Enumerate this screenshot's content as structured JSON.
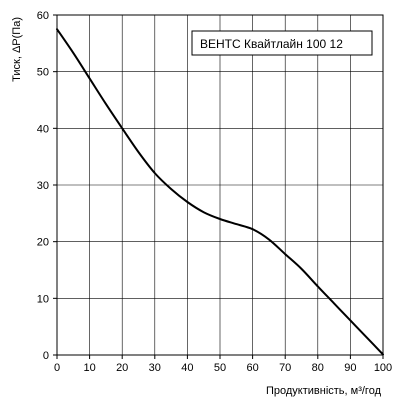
{
  "chart_data": {
    "type": "line",
    "title": "",
    "xlabel": "Продуктивність, м³/год",
    "ylabel": "Тиск, ΔP(Па)",
    "xlim": [
      0,
      100
    ],
    "ylim": [
      0,
      60
    ],
    "x_ticks": [
      0,
      10,
      20,
      30,
      40,
      50,
      60,
      70,
      80,
      90,
      100
    ],
    "y_ticks": [
      0,
      10,
      20,
      30,
      40,
      50,
      60
    ],
    "grid": true,
    "legend": "top-right",
    "series": [
      {
        "name": "ВЕНТС Квайтлайн 100 12",
        "color": "#000000",
        "x": [
          0,
          5,
          10,
          15,
          20,
          25,
          30,
          35,
          40,
          45,
          50,
          55,
          60,
          65,
          70,
          75,
          80,
          85,
          90,
          95,
          100
        ],
        "y": [
          57.5,
          53.3,
          48.8,
          44.3,
          40,
          35.8,
          32.1,
          29.3,
          27,
          25.2,
          24,
          23.1,
          22.2,
          20.4,
          17.8,
          15.2,
          12.1,
          9.1,
          6.1,
          3.1,
          0.1
        ]
      }
    ]
  }
}
